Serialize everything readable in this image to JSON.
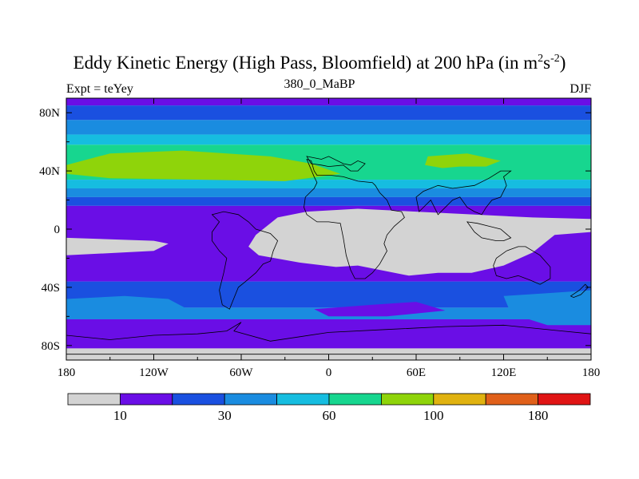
{
  "header": {
    "title_main": "Eddy Kinetic Energy (High Pass, Bloomfield) at 200 hPa (in m",
    "title_sup1": "2",
    "title_mid": "s",
    "title_sup2": "-2",
    "title_end": ")",
    "subtitle": "380_0_MaBP",
    "left_label": "Expt = teYey",
    "right_label": "DJF"
  },
  "chart_data": {
    "type": "heatmap",
    "title": "Eddy Kinetic Energy (High Pass, Bloomfield) at 200 hPa (in m^2 s^-2)",
    "subtitle": "380_0_MaBP",
    "xlim": [
      -180,
      180
    ],
    "ylim": [
      -90,
      90
    ],
    "x_ticks": [
      {
        "value": -180,
        "label": "180"
      },
      {
        "value": -120,
        "label": "120W"
      },
      {
        "value": -60,
        "label": "60W"
      },
      {
        "value": 0,
        "label": "0"
      },
      {
        "value": 60,
        "label": "60E"
      },
      {
        "value": 120,
        "label": "120E"
      },
      {
        "value": 180,
        "label": "180"
      }
    ],
    "y_ticks": [
      {
        "value": 80,
        "label": "80N"
      },
      {
        "value": 40,
        "label": "40N"
      },
      {
        "value": 0,
        "label": "0"
      },
      {
        "value": -40,
        "label": "40S"
      },
      {
        "value": -80,
        "label": "80S"
      }
    ],
    "colorbar": {
      "colors": [
        "#d3d3d3",
        "#6a0ee6",
        "#1a50e0",
        "#1a8ce0",
        "#16bde0",
        "#17d68f",
        "#8fd40a",
        "#e0b210",
        "#e0601a",
        "#e01414"
      ],
      "boundaries": [
        10,
        20,
        30,
        45,
        60,
        80,
        100,
        140,
        180
      ],
      "shown_labels": [
        {
          "index": 0,
          "label": "10"
        },
        {
          "index": 2,
          "label": "30"
        },
        {
          "index": 4,
          "label": "60"
        },
        {
          "index": 6,
          "label": "100"
        },
        {
          "index": 8,
          "label": "180"
        }
      ]
    },
    "bands": [
      {
        "lat_top": 90,
        "lat_bottom": 85,
        "level": 1
      },
      {
        "lat_top": 85,
        "lat_bottom": 75,
        "level": 2
      },
      {
        "lat_top": 75,
        "lat_bottom": 65,
        "level": 3
      },
      {
        "lat_top": 65,
        "lat_bottom": 58,
        "level": 4
      },
      {
        "lat_top": 58,
        "lat_bottom": 34,
        "level": 5
      },
      {
        "lat_top": 34,
        "lat_bottom": 28,
        "level": 4
      },
      {
        "lat_top": 28,
        "lat_bottom": 22,
        "level": 3
      },
      {
        "lat_top": 22,
        "lat_bottom": 16,
        "level": 2
      },
      {
        "lat_top": 16,
        "lat_bottom": -36,
        "level": 1
      },
      {
        "lat_top": -36,
        "lat_bottom": -54,
        "level": 2
      },
      {
        "lat_top": -54,
        "lat_bottom": -62,
        "level": 3
      },
      {
        "lat_top": -62,
        "lat_bottom": -82,
        "level": 1
      },
      {
        "lat_top": -82,
        "lat_bottom": -90,
        "level": 0
      }
    ],
    "regions": [
      {
        "name": "nh-jet-core-atlantic",
        "level": 6,
        "points": [
          [
            -180,
            44
          ],
          [
            -150,
            52
          ],
          [
            -100,
            54
          ],
          [
            -40,
            50
          ],
          [
            -12,
            45
          ],
          [
            8,
            38
          ],
          [
            -30,
            33
          ],
          [
            -90,
            34
          ],
          [
            -150,
            35
          ],
          [
            -180,
            38
          ]
        ]
      },
      {
        "name": "nh-jet-core-pacific",
        "level": 6,
        "points": [
          [
            68,
            50
          ],
          [
            95,
            52
          ],
          [
            118,
            47
          ],
          [
            108,
            43
          ],
          [
            90,
            43
          ],
          [
            78,
            42
          ],
          [
            66,
            44
          ]
        ]
      },
      {
        "name": "tropical-gray-main",
        "level": 0,
        "points": [
          [
            -55,
            -12
          ],
          [
            -50,
            -4
          ],
          [
            -35,
            8
          ],
          [
            -15,
            12
          ],
          [
            20,
            14
          ],
          [
            60,
            12
          ],
          [
            100,
            10
          ],
          [
            140,
            8
          ],
          [
            180,
            7
          ],
          [
            180,
            -2
          ],
          [
            155,
            -4
          ],
          [
            140,
            -16
          ],
          [
            120,
            -25
          ],
          [
            98,
            -30
          ],
          [
            75,
            -30
          ],
          [
            55,
            -32
          ],
          [
            20,
            -25
          ],
          [
            5,
            -26
          ],
          [
            -20,
            -23
          ],
          [
            -48,
            -18
          ]
        ]
      },
      {
        "name": "tropical-gray-west",
        "level": 0,
        "points": [
          [
            -180,
            -6
          ],
          [
            -120,
            -8
          ],
          [
            -110,
            -10
          ],
          [
            -120,
            -15
          ],
          [
            -180,
            -18
          ]
        ]
      },
      {
        "name": "sh-band-edge-left",
        "level": 3,
        "points": [
          [
            -180,
            -48
          ],
          [
            -140,
            -46
          ],
          [
            -110,
            -48
          ],
          [
            -95,
            -56
          ],
          [
            -140,
            -60
          ],
          [
            -180,
            -60
          ]
        ]
      },
      {
        "name": "sh-band-edge-right",
        "level": 3,
        "points": [
          [
            120,
            -46
          ],
          [
            150,
            -44
          ],
          [
            180,
            -42
          ],
          [
            180,
            -66
          ],
          [
            150,
            -66
          ],
          [
            125,
            -58
          ]
        ]
      },
      {
        "name": "sh-gap-mid",
        "level": 1,
        "points": [
          [
            -10,
            -55
          ],
          [
            30,
            -52
          ],
          [
            60,
            -50
          ],
          [
            80,
            -56
          ],
          [
            40,
            -60
          ],
          [
            0,
            -60
          ]
        ]
      }
    ],
    "coastlines": [
      [
        [
          -15,
          48
        ],
        [
          -12,
          47
        ],
        [
          -10,
          40
        ],
        [
          -8,
          37
        ],
        [
          2,
          37
        ],
        [
          10,
          36
        ],
        [
          20,
          33
        ],
        [
          30,
          32
        ],
        [
          32,
          30
        ],
        [
          35,
          25
        ],
        [
          40,
          20
        ],
        [
          43,
          13
        ],
        [
          50,
          12
        ],
        [
          52,
          8
        ],
        [
          45,
          2
        ],
        [
          40,
          -4
        ],
        [
          38,
          -10
        ],
        [
          40,
          -15
        ],
        [
          35,
          -24
        ],
        [
          30,
          -30
        ],
        [
          25,
          -34
        ],
        [
          18,
          -34
        ],
        [
          15,
          -28
        ],
        [
          12,
          -18
        ],
        [
          10,
          -6
        ],
        [
          8,
          4
        ],
        [
          0,
          5
        ],
        [
          -8,
          5
        ],
        [
          -15,
          10
        ],
        [
          -17,
          15
        ],
        [
          -16,
          22
        ],
        [
          -10,
          28
        ],
        [
          -8,
          32
        ],
        [
          -10,
          36
        ]
      ],
      [
        [
          -15,
          50
        ],
        [
          -5,
          48
        ],
        [
          0,
          50
        ],
        [
          10,
          45
        ],
        [
          15,
          44
        ],
        [
          20,
          47
        ],
        [
          25,
          45
        ],
        [
          20,
          40
        ],
        [
          15,
          40
        ],
        [
          10,
          44
        ],
        [
          0,
          43
        ],
        [
          -5,
          44
        ],
        [
          -12,
          45
        ]
      ],
      [
        [
          60,
          22
        ],
        [
          62,
          12
        ],
        [
          70,
          20
        ],
        [
          75,
          10
        ],
        [
          80,
          15
        ],
        [
          85,
          20
        ],
        [
          90,
          22
        ],
        [
          95,
          15
        ],
        [
          100,
          12
        ],
        [
          105,
          10
        ],
        [
          108,
          15
        ],
        [
          112,
          20
        ],
        [
          118,
          22
        ],
        [
          122,
          30
        ],
        [
          120,
          36
        ],
        [
          125,
          40
        ],
        [
          118,
          40
        ],
        [
          110,
          35
        ],
        [
          100,
          30
        ],
        [
          85,
          28
        ],
        [
          75,
          30
        ],
        [
          65,
          26
        ]
      ],
      [
        [
          95,
          5
        ],
        [
          100,
          -2
        ],
        [
          105,
          -6
        ],
        [
          115,
          -8
        ],
        [
          120,
          -8
        ],
        [
          125,
          -6
        ],
        [
          118,
          0
        ],
        [
          110,
          2
        ],
        [
          102,
          4
        ]
      ],
      [
        [
          115,
          -20
        ],
        [
          122,
          -15
        ],
        [
          130,
          -12
        ],
        [
          135,
          -12
        ],
        [
          140,
          -15
        ],
        [
          145,
          -18
        ],
        [
          152,
          -26
        ],
        [
          152,
          -34
        ],
        [
          145,
          -38
        ],
        [
          138,
          -35
        ],
        [
          130,
          -32
        ],
        [
          122,
          -34
        ],
        [
          115,
          -32
        ],
        [
          113,
          -25
        ]
      ],
      [
        [
          -80,
          10
        ],
        [
          -75,
          5
        ],
        [
          -80,
          -2
        ],
        [
          -80,
          -8
        ],
        [
          -75,
          -15
        ],
        [
          -70,
          -20
        ],
        [
          -72,
          -30
        ],
        [
          -75,
          -42
        ],
        [
          -73,
          -52
        ],
        [
          -68,
          -55
        ],
        [
          -66,
          -50
        ],
        [
          -62,
          -40
        ],
        [
          -57,
          -36
        ],
        [
          -50,
          -30
        ],
        [
          -45,
          -24
        ],
        [
          -40,
          -22
        ],
        [
          -38,
          -15
        ],
        [
          -35,
          -8
        ],
        [
          -40,
          -3
        ],
        [
          -50,
          0
        ],
        [
          -55,
          5
        ],
        [
          -62,
          10
        ],
        [
          -72,
          12
        ]
      ],
      [
        [
          -180,
          -73
        ],
        [
          -150,
          -76
        ],
        [
          -120,
          -73
        ],
        [
          -90,
          -72
        ],
        [
          -70,
          -70
        ],
        [
          -60,
          -64
        ],
        [
          -65,
          -70
        ],
        [
          -40,
          -77
        ],
        [
          0,
          -71
        ],
        [
          40,
          -69
        ],
        [
          80,
          -67
        ],
        [
          120,
          -66
        ],
        [
          160,
          -70
        ],
        [
          180,
          -72
        ],
        [
          180,
          -86
        ],
        [
          -180,
          -86
        ]
      ],
      [
        [
          166,
          -46
        ],
        [
          172,
          -42
        ],
        [
          176,
          -38
        ],
        [
          178,
          -40
        ],
        [
          173,
          -45
        ],
        [
          168,
          -47
        ]
      ]
    ]
  }
}
